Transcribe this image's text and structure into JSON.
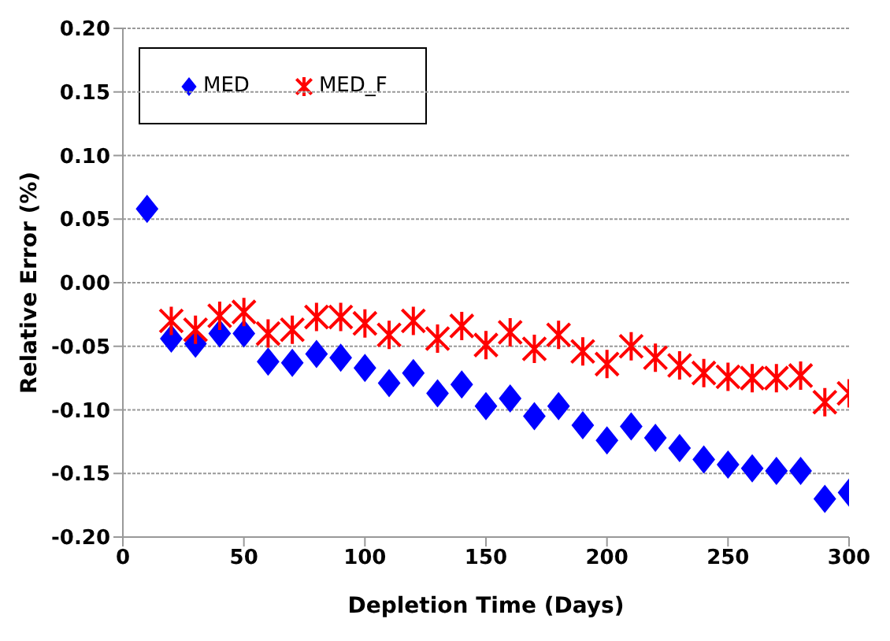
{
  "chart_data": {
    "type": "scatter",
    "xlabel": "Depletion Time (Days)",
    "ylabel": "Relative Error (%)",
    "x": [
      10,
      20,
      30,
      40,
      50,
      60,
      70,
      80,
      90,
      100,
      110,
      120,
      130,
      140,
      150,
      160,
      170,
      180,
      190,
      200,
      210,
      220,
      230,
      240,
      250,
      260,
      270,
      280,
      290,
      300
    ],
    "series": [
      {
        "name": "MED",
        "color": "#0000ff",
        "marker": "diamond",
        "values": [
          0.058,
          -0.044,
          -0.048,
          -0.04,
          -0.04,
          -0.062,
          -0.063,
          -0.056,
          -0.059,
          -0.067,
          -0.079,
          -0.071,
          -0.087,
          -0.08,
          -0.097,
          -0.091,
          -0.105,
          -0.097,
          -0.112,
          -0.124,
          -0.113,
          -0.122,
          -0.13,
          -0.139,
          -0.143,
          -0.146,
          -0.148,
          -0.148,
          -0.17,
          -0.165
        ]
      },
      {
        "name": "MED_F",
        "color": "#ff0000",
        "marker": "cross",
        "values": [
          null,
          -0.03,
          -0.037,
          -0.026,
          -0.023,
          -0.04,
          -0.037,
          -0.027,
          -0.027,
          -0.032,
          -0.041,
          -0.03,
          -0.044,
          -0.034,
          -0.049,
          -0.039,
          -0.052,
          -0.041,
          -0.054,
          -0.064,
          -0.05,
          -0.059,
          -0.065,
          -0.071,
          -0.074,
          -0.075,
          -0.075,
          -0.073,
          -0.094,
          -0.087
        ]
      }
    ],
    "xlim": [
      0,
      300
    ],
    "xticks": [
      0,
      50,
      100,
      150,
      200,
      250,
      300
    ],
    "ylim": [
      -0.2,
      0.2
    ],
    "yticks": [
      {
        "value": -0.2,
        "label": "-0.20"
      },
      {
        "value": -0.15,
        "label": "-0.15"
      },
      {
        "value": -0.1,
        "label": "-0.10"
      },
      {
        "value": -0.05,
        "label": "-0.05"
      },
      {
        "value": 0,
        "label": "0.00"
      },
      {
        "value": 0.05,
        "label": "0.05"
      },
      {
        "value": 0.1,
        "label": "0.10"
      },
      {
        "value": 0.15,
        "label": "0.15"
      },
      {
        "value": 0.2,
        "label": "0.20"
      }
    ],
    "grid": "y",
    "legend": "top left"
  }
}
